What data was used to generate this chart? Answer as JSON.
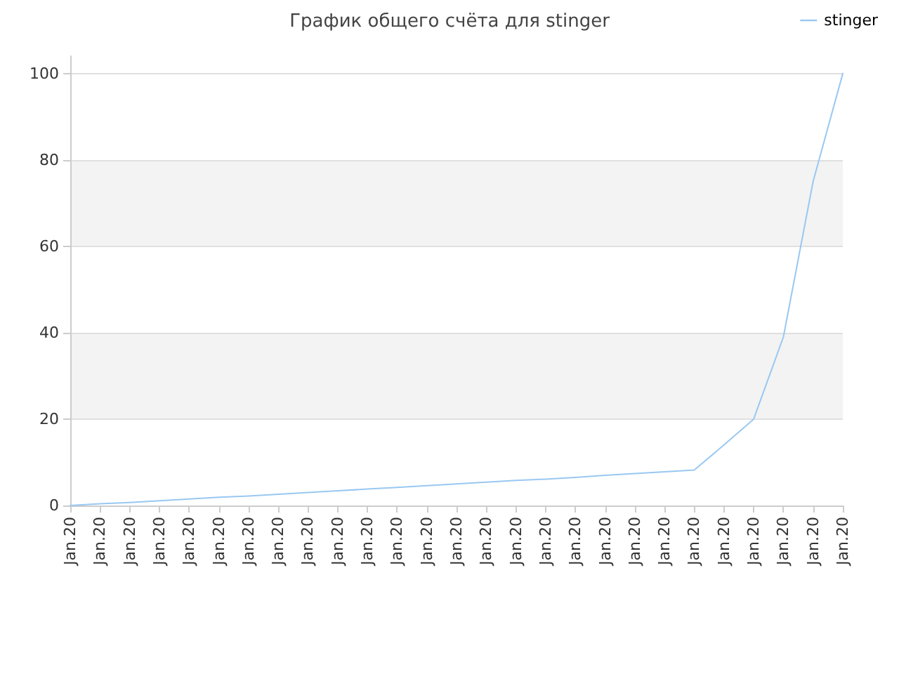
{
  "chart_data": {
    "type": "line",
    "title": "График общего счёта для stinger",
    "categories": [
      "Jan.20",
      "Jan.20",
      "Jan.20",
      "Jan.20",
      "Jan.20",
      "Jan.20",
      "Jan.20",
      "Jan.20",
      "Jan.20",
      "Jan.20",
      "Jan.20",
      "Jan.20",
      "Jan.20",
      "Jan.20",
      "Jan.20",
      "Jan.20",
      "Jan.20",
      "Jan.20",
      "Jan.20",
      "Jan.20",
      "Jan.20",
      "Jan.20",
      "Jan.20",
      "Jan.20",
      "Jan.20",
      "Jan.20",
      "Jan.20"
    ],
    "series": [
      {
        "name": "stinger",
        "color": "#99c8f2",
        "values": [
          0,
          0.4,
          0.7,
          1.1,
          1.5,
          1.9,
          2.2,
          2.6,
          3.0,
          3.4,
          3.8,
          4.2,
          4.6,
          5.0,
          5.4,
          5.8,
          6.1,
          6.5,
          7.0,
          7.4,
          7.8,
          8.2,
          14,
          20,
          39,
          75,
          100
        ]
      }
    ],
    "ylim": [
      0,
      104
    ],
    "yticks": [
      0,
      20,
      40,
      60,
      80,
      100
    ],
    "grid": "y",
    "legend": "top right",
    "marker": "none",
    "line_style": "solid"
  }
}
